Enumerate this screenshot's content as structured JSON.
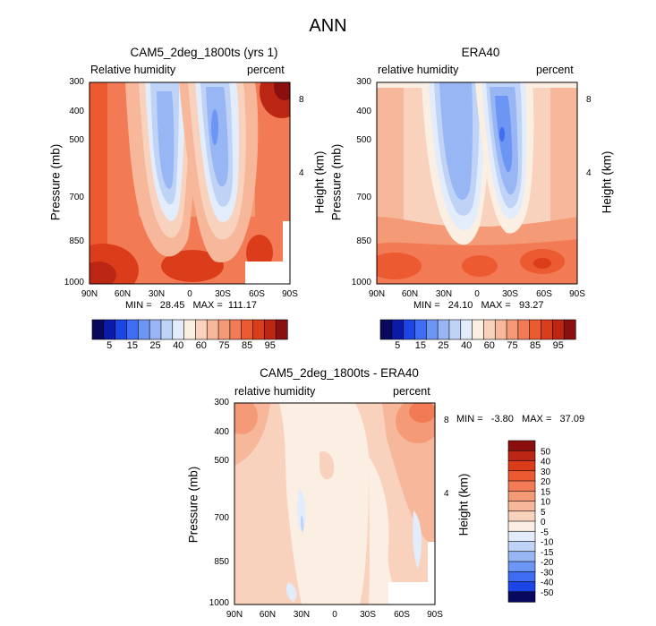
{
  "page_title": "ANN",
  "colors": {
    "palette": [
      "#08085c",
      "#0b1aa7",
      "#1c45e6",
      "#3e6cf2",
      "#6d95f3",
      "#98b6f4",
      "#bfd3f7",
      "#e3ecfb",
      "#fbeee3",
      "#f9d2bd",
      "#f7b79a",
      "#f49a77",
      "#f27b55",
      "#ec5a31",
      "#db3d1b",
      "#bb2714",
      "#8a0f0e"
    ],
    "line": "#000000",
    "background": "#ffffff"
  },
  "chart_data": [
    {
      "id": "cam5",
      "type": "heatmap",
      "title": "CAM5_2deg_1800ts (yrs 1)",
      "left_label": "Relative humidity",
      "right_label": "percent",
      "xlabel": "",
      "ylabel": "Pressure (mb)",
      "y2label": "Height (km)",
      "x_ticks": [
        "90N",
        "60N",
        "30N",
        "0",
        "30S",
        "60S",
        "90S"
      ],
      "y_ticks": [
        "300",
        "400",
        "500",
        "700",
        "850",
        "1000"
      ],
      "y2_ticks": [
        "8",
        "4"
      ],
      "stats": "MIN =   28.45   MAX =  111.17",
      "min": 28.45,
      "max": 111.17,
      "colorbar_labels": [
        "5",
        "15",
        "25",
        "40",
        "60",
        "75",
        "85",
        "95"
      ]
    },
    {
      "id": "era40",
      "type": "heatmap",
      "title": "ERA40",
      "left_label": "relative humidity",
      "right_label": "percent",
      "xlabel": "",
      "ylabel": "Pressure (mb)",
      "y2label": "Height (km)",
      "x_ticks": [
        "90N",
        "60N",
        "30N",
        "0",
        "30S",
        "60S",
        "90S"
      ],
      "y_ticks": [
        "300",
        "400",
        "500",
        "700",
        "850",
        "1000"
      ],
      "y2_ticks": [
        "8",
        "4"
      ],
      "stats": "MIN =   24.10   MAX =   93.27",
      "min": 24.1,
      "max": 93.27,
      "colorbar_labels": [
        "5",
        "15",
        "25",
        "40",
        "60",
        "75",
        "85",
        "95"
      ]
    },
    {
      "id": "diff",
      "type": "heatmap",
      "title": "CAM5_2deg_1800ts - ERA40",
      "left_label": "relative humidity",
      "right_label": "percent",
      "xlabel": "",
      "ylabel": "Pressure (mb)",
      "y2label": "Height (km)",
      "x_ticks": [
        "90N",
        "60N",
        "30N",
        "0",
        "30S",
        "60S",
        "90S"
      ],
      "y_ticks": [
        "300",
        "400",
        "500",
        "700",
        "850",
        "1000"
      ],
      "y2_ticks": [
        "8",
        "4"
      ],
      "stats": "MIN =   -3.80   MAX =   37.09",
      "min": -3.8,
      "max": 37.09,
      "colorbar_labels": [
        "50",
        "40",
        "30",
        "20",
        "15",
        "10",
        "5",
        "0",
        "-5",
        "-10",
        "-15",
        "-20",
        "-30",
        "-40",
        "-50"
      ]
    }
  ]
}
